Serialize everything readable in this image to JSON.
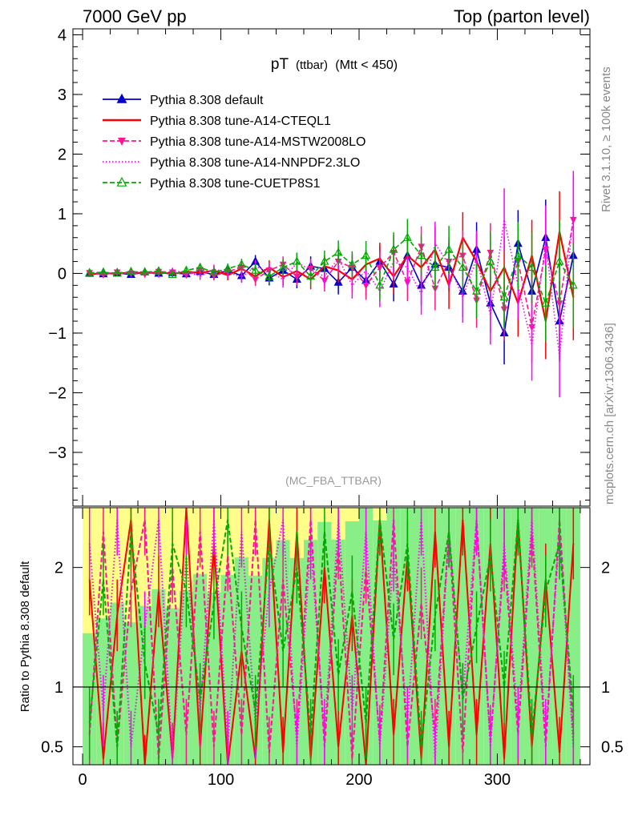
{
  "header": {
    "left": "7000 GeV pp",
    "right": "Top (parton level)"
  },
  "side_labels": {
    "rivet": "Rivet 3.1.10, ≥ 100k events",
    "mcplots": "mcplots.cern.ch [arXiv:1306.3436]"
  },
  "chart_data": [
    {
      "type": "line",
      "panel": "main",
      "title_main": "pT",
      "title_sub": "(ttbar)",
      "title_cut": "(Mtt < 450)",
      "analysis_label": "(MC_FBA_TTBAR)",
      "xlim": [
        -7,
        367
      ],
      "ylim": [
        -3.9,
        4.1
      ],
      "yticks": [
        -3,
        -2,
        -1,
        0,
        1,
        2,
        3,
        4
      ],
      "legend_position": "top-left",
      "series": [
        {
          "name": "Pythia 8.308 default",
          "color": "#0000cc",
          "style": "solid",
          "marker": "triangle-filled",
          "x": [
            5,
            15,
            25,
            35,
            45,
            55,
            65,
            75,
            85,
            95,
            105,
            115,
            125,
            135,
            145,
            155,
            165,
            175,
            185,
            195,
            205,
            215,
            225,
            235,
            245,
            255,
            265,
            275,
            285,
            295,
            305,
            315,
            325,
            335,
            345,
            355
          ],
          "y": [
            0,
            -0.01,
            0.01,
            -0.02,
            0.02,
            0,
            0.01,
            -0.01,
            0.03,
            -0.02,
            0.05,
            -0.04,
            0.2,
            -0.08,
            0.05,
            -0.1,
            0.12,
            0.08,
            -0.15,
            0.1,
            -0.12,
            0.2,
            -0.18,
            0.3,
            -0.2,
            0.15,
            0.1,
            -0.3,
            0.4,
            -0.5,
            -1.0,
            0.5,
            -0.3,
            0.6,
            -0.8,
            0.3
          ]
        },
        {
          "name": "Pythia 8.308 tune-A14-CTEQL1",
          "color": "#ff0000",
          "style": "solid",
          "marker": "none",
          "x": [
            5,
            15,
            25,
            35,
            45,
            55,
            65,
            75,
            85,
            95,
            105,
            115,
            125,
            135,
            145,
            155,
            165,
            175,
            185,
            195,
            205,
            215,
            225,
            235,
            245,
            255,
            265,
            275,
            285,
            295,
            305,
            315,
            325,
            335,
            345,
            355
          ],
          "y": [
            -0.02,
            0.01,
            -0.01,
            0.02,
            0,
            0.02,
            -0.01,
            0.03,
            0.01,
            0.05,
            -0.03,
            0.08,
            -0.05,
            0.1,
            -0.06,
            0.04,
            -0.1,
            0.12,
            0.05,
            -0.1,
            0.15,
            0.25,
            -0.05,
            0.3,
            0.1,
            0.4,
            -0.2,
            0.6,
            0.2,
            -0.3,
            0.1,
            -0.5,
            0.3,
            -0.8,
            0.7,
            -0.4
          ]
        },
        {
          "name": "Pythia 8.308 tune-A14-MSTW2008LO",
          "color": "#ff1493",
          "style": "dashed",
          "marker": "triangle-down",
          "x": [
            5,
            15,
            25,
            35,
            45,
            55,
            65,
            75,
            85,
            95,
            105,
            115,
            125,
            135,
            145,
            155,
            165,
            175,
            185,
            195,
            205,
            215,
            225,
            235,
            245,
            255,
            265,
            275,
            285,
            295,
            305,
            315,
            325,
            335,
            345,
            355
          ],
          "y": [
            0.01,
            -0.02,
            0.02,
            0,
            -0.01,
            0.03,
            0.02,
            -0.02,
            0.06,
            -0.04,
            0.03,
            0.1,
            -0.1,
            0.05,
            0.15,
            -0.05,
            0.08,
            -0.12,
            0.2,
            0.1,
            -0.2,
            0.1,
            0.35,
            -0.15,
            0.45,
            -0.25,
            0.2,
            0.3,
            -0.45,
            0.35,
            -0.6,
            0.2,
            -0.9,
            0.4,
            -0.5,
            0.9
          ]
        },
        {
          "name": "Pythia 8.308 tune-A14-NNPDF2.3LO",
          "color": "#ff00ff",
          "style": "dotted",
          "marker": "none",
          "x": [
            5,
            15,
            25,
            35,
            45,
            55,
            65,
            75,
            85,
            95,
            105,
            115,
            125,
            135,
            145,
            155,
            165,
            175,
            185,
            195,
            205,
            215,
            225,
            235,
            245,
            255,
            265,
            275,
            285,
            295,
            305,
            315,
            325,
            335,
            345,
            355
          ],
          "y": [
            0,
            0.02,
            -0.01,
            0.01,
            0.03,
            -0.02,
            0.04,
            0.02,
            -0.04,
            0.07,
            0.02,
            -0.06,
            0.12,
            0.03,
            -0.1,
            0.18,
            0.06,
            -0.05,
            0.25,
            -0.2,
            0.05,
            -0.3,
            0.2,
            0.1,
            -0.35,
            0.5,
            0.15,
            -0.4,
            0.25,
            -0.7,
            0.9,
            -0.2,
            -1.2,
            0.5,
            -1.4,
            1.0
          ]
        },
        {
          "name": "Pythia 8.308 tune-CUETP8S1",
          "color": "#00aa00",
          "style": "dashed",
          "marker": "triangle-open",
          "x": [
            5,
            15,
            25,
            35,
            45,
            55,
            65,
            75,
            85,
            95,
            105,
            115,
            125,
            135,
            145,
            155,
            165,
            175,
            185,
            195,
            205,
            215,
            225,
            235,
            245,
            255,
            265,
            275,
            285,
            295,
            305,
            315,
            325,
            335,
            345,
            355
          ],
          "y": [
            0.01,
            0.02,
            0,
            0.03,
            0.02,
            0.04,
            -0.02,
            0.05,
            0.1,
            0.02,
            0.08,
            0.15,
            0.05,
            -0.05,
            0.1,
            0.2,
            -0.05,
            0.2,
            0.35,
            0.15,
            0.3,
            -0.2,
            0.4,
            0.6,
            0.3,
            0.1,
            0.4,
            0.1,
            -0.3,
            0.2,
            -0.4,
            0.3,
            0.1,
            -0.5,
            0.2,
            -0.2
          ]
        }
      ]
    },
    {
      "type": "line",
      "panel": "ratio",
      "ylabel": "Ratio to Pythia 8.308 default",
      "xlim": [
        -7,
        367
      ],
      "ylim": [
        0.35,
        2.5
      ],
      "yticks": [
        0.5,
        1,
        2
      ],
      "xticks": [
        0,
        100,
        200,
        300
      ],
      "reference": 1,
      "series": [
        {
          "name": "Pythia 8.308 tune-A14-CTEQL1",
          "color": "#ff0000",
          "style": "solid",
          "x": [
            5,
            15,
            25,
            35,
            45,
            55,
            65,
            75,
            85,
            95,
            105,
            115,
            125,
            135,
            145,
            155,
            165,
            175,
            185,
            195,
            205,
            215,
            225,
            235,
            245,
            255,
            265,
            275,
            285,
            295,
            305,
            315,
            325,
            335,
            345,
            355
          ],
          "y": [
            1.9,
            0.4,
            1.6,
            2.4,
            0.3,
            1.8,
            0.4,
            2.5,
            0.5,
            2.2,
            0.35,
            1.3,
            0.4,
            2.4,
            0.45,
            2.3,
            0.4,
            2.0,
            0.5,
            1.6,
            0.35,
            2.4,
            0.6,
            2.1,
            0.4,
            2.3,
            0.5,
            2.4,
            0.6,
            2.2,
            0.4,
            2.4,
            0.5,
            1.9,
            0.45,
            2.2
          ]
        },
        {
          "name": "Pythia 8.308 tune-A14-MSTW2008LO",
          "color": "#ff1493",
          "style": "dashed",
          "x": [
            5,
            15,
            25,
            35,
            45,
            55,
            65,
            75,
            85,
            95,
            105,
            115,
            125,
            135,
            145,
            155,
            165,
            175,
            185,
            195,
            205,
            215,
            225,
            235,
            245,
            255,
            265,
            275,
            285,
            295,
            305,
            315,
            325,
            335,
            345,
            355
          ],
          "y": [
            0.6,
            2.3,
            0.5,
            1.8,
            2.4,
            0.4,
            2.0,
            0.6,
            2.3,
            0.5,
            2.1,
            0.6,
            2.4,
            0.45,
            1.9,
            0.6,
            2.4,
            0.5,
            2.2,
            0.4,
            2.0,
            0.55,
            2.4,
            0.5,
            1.7,
            0.6,
            2.3,
            0.45,
            2.4,
            0.55,
            2.1,
            0.6,
            2.3,
            0.5,
            2.4,
            0.6
          ]
        },
        {
          "name": "Pythia 8.308 tune-A14-NNPDF2.3LO",
          "color": "#ff00ff",
          "style": "dotted",
          "x": [
            5,
            15,
            25,
            35,
            45,
            55,
            65,
            75,
            85,
            95,
            105,
            115,
            125,
            135,
            145,
            155,
            165,
            175,
            185,
            195,
            205,
            215,
            225,
            235,
            245,
            255,
            265,
            275,
            285,
            295,
            305,
            315,
            325,
            335,
            345,
            355
          ],
          "y": [
            2.2,
            0.8,
            2.4,
            0.5,
            1.5,
            2.4,
            0.4,
            2.1,
            0.8,
            2.4,
            0.5,
            2.3,
            0.7,
            1.8,
            2.4,
            0.5,
            2.2,
            0.6,
            2.4,
            0.8,
            2.3,
            0.5,
            2.1,
            0.7,
            2.4,
            0.4,
            2.3,
            0.9,
            2.4,
            0.5,
            2.2,
            0.7,
            2.4,
            0.6,
            2.3,
            0.5
          ]
        },
        {
          "name": "Pythia 8.308 tune-CUETP8S1",
          "color": "#00aa00",
          "style": "dashed",
          "x": [
            5,
            15,
            25,
            35,
            45,
            55,
            65,
            75,
            85,
            95,
            105,
            115,
            125,
            135,
            145,
            155,
            165,
            175,
            185,
            195,
            205,
            215,
            225,
            235,
            245,
            255,
            265,
            275,
            285,
            295,
            305,
            315,
            325,
            335,
            345,
            355
          ],
          "y": [
            0.7,
            1.9,
            0.5,
            2.3,
            1.2,
            0.6,
            2.2,
            1.8,
            0.9,
            1.7,
            2.4,
            1.5,
            0.8,
            2.2,
            1.3,
            2.0,
            0.6,
            2.3,
            1.1,
            1.8,
            0.7,
            2.4,
            1.4,
            2.2,
            0.5,
            1.6,
            2.3,
            0.9,
            1.5,
            2.1,
            1.0,
            2.4,
            0.6,
            1.8,
            2.2,
            0.8
          ]
        }
      ]
    }
  ]
}
